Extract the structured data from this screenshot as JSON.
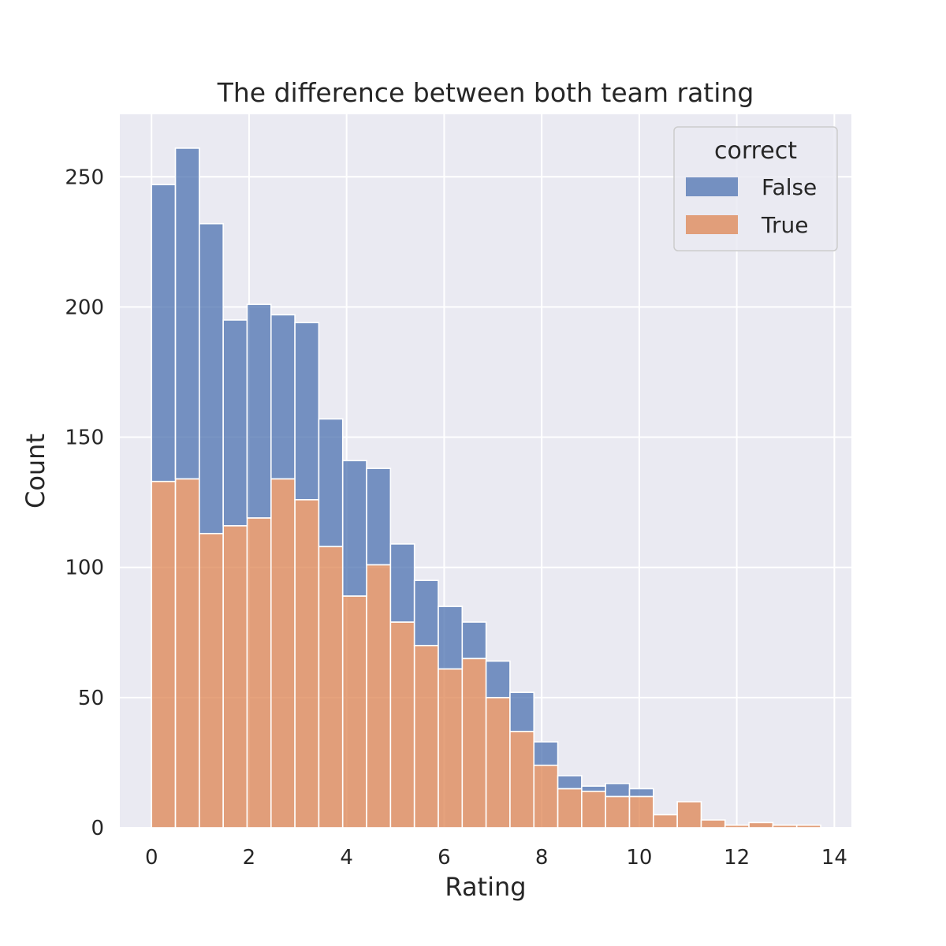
{
  "chart_data": {
    "type": "bar",
    "title": "The difference between both team rating",
    "xlabel": "Rating",
    "ylabel": "Count",
    "xlim": [
      -0.65,
      14.35
    ],
    "ylim": [
      0,
      274
    ],
    "xticks": [
      0,
      2,
      4,
      6,
      8,
      10,
      12,
      14
    ],
    "yticks": [
      0,
      50,
      100,
      150,
      200,
      250
    ],
    "grid": true,
    "stacked": true,
    "bin_edges": [
      0,
      0.49,
      0.98,
      1.47,
      1.96,
      2.45,
      2.94,
      3.43,
      3.92,
      4.41,
      4.9,
      5.39,
      5.88,
      6.37,
      6.86,
      7.35,
      7.84,
      8.33,
      8.82,
      9.31,
      9.8,
      10.29,
      10.78,
      11.27,
      11.76,
      12.25,
      12.74,
      13.23,
      13.72
    ],
    "legend": {
      "title": "correct",
      "position": "top-right",
      "entries": [
        "False",
        "True"
      ]
    },
    "series": [
      {
        "name": "True",
        "color": "#dd8452",
        "values": [
          133,
          134,
          113,
          116,
          119,
          134,
          126,
          108,
          89,
          101,
          79,
          70,
          61,
          65,
          50,
          37,
          24,
          15,
          14,
          12,
          12,
          5,
          10,
          3,
          1,
          2,
          1,
          1
        ]
      },
      {
        "name": "False",
        "color": "#4c72b0",
        "values": [
          114,
          127,
          119,
          79,
          82,
          63,
          68,
          49,
          52,
          37,
          30,
          25,
          24,
          14,
          14,
          15,
          9,
          5,
          2,
          5,
          3,
          0,
          0,
          0,
          0,
          0,
          0,
          0
        ]
      }
    ],
    "colors": {
      "plot_background": "#eaeaf2",
      "grid": "#ffffff"
    }
  }
}
